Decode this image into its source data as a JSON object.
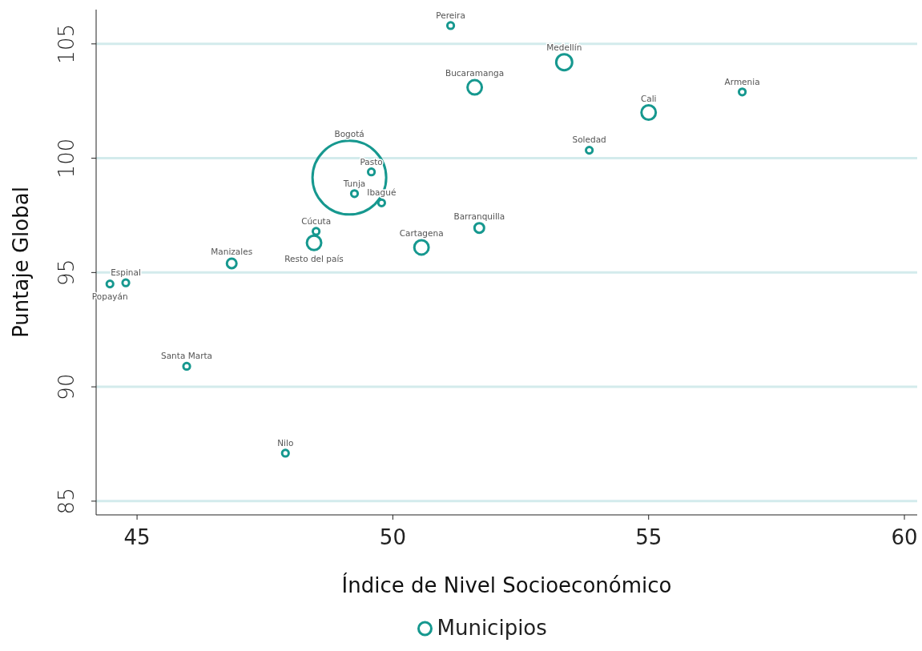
{
  "chart_data": {
    "type": "bubble",
    "xlabel": "Índice de Nivel Socioeconómico",
    "ylabel": "Puntaje Global",
    "xlim": [
      44.2,
      60.25
    ],
    "xticks": [
      45,
      50,
      55,
      60
    ],
    "ylim": [
      84.4,
      106.5
    ],
    "yticks": [
      85,
      90,
      95,
      100,
      105
    ],
    "grid": "y",
    "legend": "bottom",
    "marker": "circle",
    "series": [
      {
        "name": "Municipios",
        "color": "#16988f",
        "x": [
          51.13,
          53.35,
          51.6,
          56.83,
          55.0,
          53.84,
          49.15,
          49.58,
          49.25,
          49.78,
          51.69,
          48.5,
          48.46,
          50.56,
          46.85,
          44.78,
          44.47,
          45.97,
          47.9
        ],
        "values": [
          105.8,
          104.2,
          103.1,
          102.9,
          102.0,
          100.35,
          99.15,
          99.4,
          98.45,
          98.05,
          96.95,
          96.8,
          96.3,
          96.1,
          95.4,
          94.55,
          94.5,
          90.9,
          87.1
        ],
        "sizes": [
          0.008,
          0.047,
          0.038,
          0.008,
          0.038,
          0.008,
          1,
          0.008,
          0.008,
          0.008,
          0.017,
          0.008,
          0.038,
          0.038,
          0.017,
          0.008,
          0.008,
          0.008,
          0.008
        ],
        "value_labels": [
          "Pereira",
          "Medellín",
          "Bucaramanga",
          "Armenia",
          "Cali",
          "Soledad",
          "Bogotá",
          "Pasto",
          "Tunja",
          "Ibagué",
          "Barranquilla",
          "Cúcuta",
          "Resto del país",
          "Cartagena",
          "Manizales",
          "Espinal",
          "Popayán",
          "Santa Marta",
          "Nilo"
        ]
      }
    ]
  }
}
